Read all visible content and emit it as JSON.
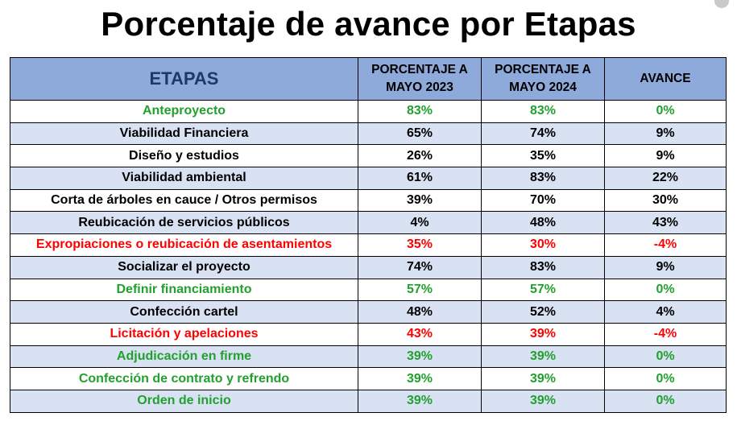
{
  "title": "Porcentaje de avance por Etapas",
  "table": {
    "headers": {
      "stage": "ETAPAS",
      "may2023_line1": "PORCENTAJE A",
      "may2023_line2": "MAYO 2023",
      "may2024_line1": "PORCENTAJE A",
      "may2024_line2": "MAYO 2024",
      "progress": "AVANCE"
    },
    "rows": [
      {
        "stage": "Anteproyecto",
        "may2023": "83%",
        "may2024": "83%",
        "progress": "0%",
        "color": "green"
      },
      {
        "stage": "Viabilidad Financiera",
        "may2023": "65%",
        "may2024": "74%",
        "progress": "9%",
        "color": "black"
      },
      {
        "stage": "Diseño y estudios",
        "may2023": "26%",
        "may2024": "35%",
        "progress": "9%",
        "color": "black"
      },
      {
        "stage": "Viabilidad ambiental",
        "may2023": "61%",
        "may2024": "83%",
        "progress": "22%",
        "color": "black"
      },
      {
        "stage": "Corta de árboles en cauce / Otros permisos",
        "may2023": "39%",
        "may2024": "70%",
        "progress": "30%",
        "color": "black"
      },
      {
        "stage": "Reubicación de servicios públicos",
        "may2023": "4%",
        "may2024": "48%",
        "progress": "43%",
        "color": "black"
      },
      {
        "stage": "Expropiaciones o reubicación de asentamientos",
        "may2023": "35%",
        "may2024": "30%",
        "progress": "-4%",
        "color": "red"
      },
      {
        "stage": "Socializar el proyecto",
        "may2023": "74%",
        "may2024": "83%",
        "progress": "9%",
        "color": "black"
      },
      {
        "stage": "Definir financiamiento",
        "may2023": "57%",
        "may2024": "57%",
        "progress": "0%",
        "color": "green"
      },
      {
        "stage": "Confección cartel",
        "may2023": "48%",
        "may2024": "52%",
        "progress": "4%",
        "color": "black"
      },
      {
        "stage": "Licitación y apelaciones",
        "may2023": "43%",
        "may2024": "39%",
        "progress": "-4%",
        "color": "red"
      },
      {
        "stage": "Adjudicación en firme",
        "may2023": "39%",
        "may2024": "39%",
        "progress": "0%",
        "color": "green"
      },
      {
        "stage": "Confección de contrato y refrendo",
        "may2023": "39%",
        "may2024": "39%",
        "progress": "0%",
        "color": "green"
      },
      {
        "stage": "Orden de inicio",
        "may2023": "39%",
        "may2024": "39%",
        "progress": "0%",
        "color": "green"
      }
    ]
  },
  "colors": {
    "header_bg": "#8eaadb",
    "band_bg": "#d9e2f3",
    "green": "#22a02e",
    "red": "#ff0000",
    "black": "#000000",
    "stage_header_text": "#1f3864"
  }
}
